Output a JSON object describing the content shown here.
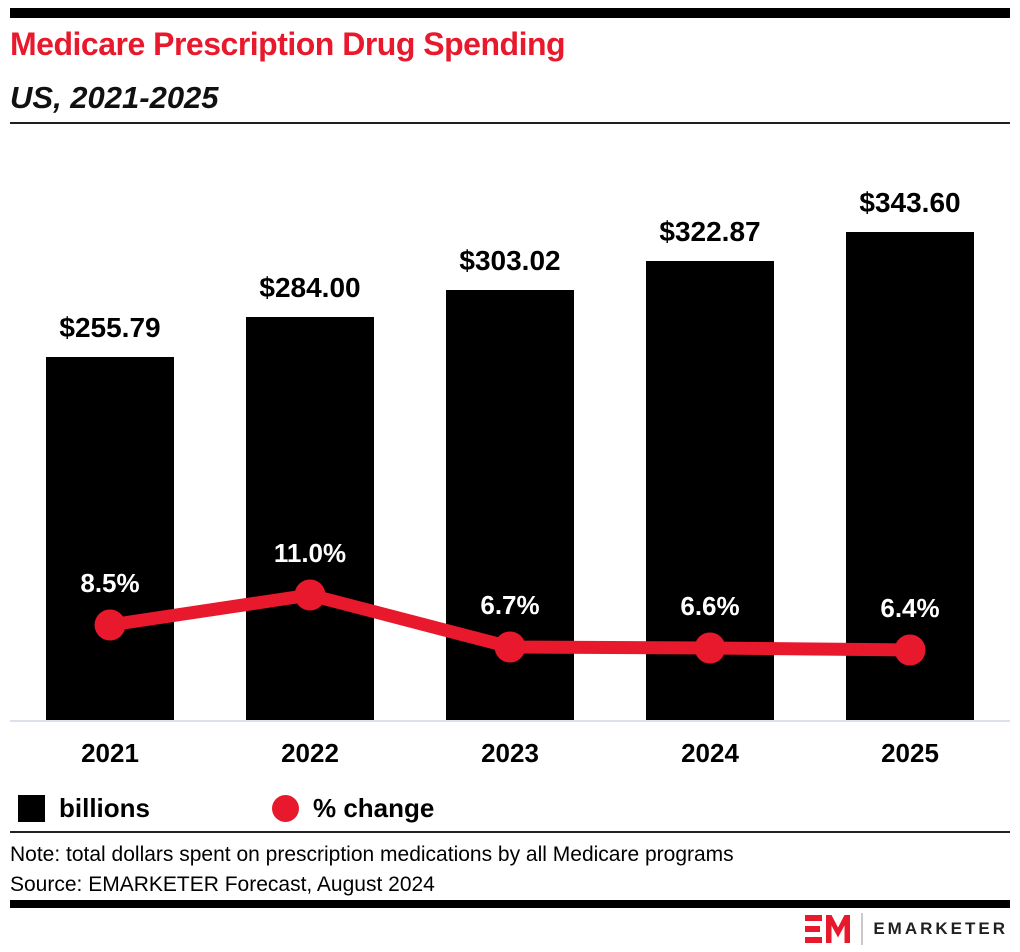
{
  "header": {
    "title": "Medicare Prescription Drug Spending",
    "subtitle": "US, 2021-2025"
  },
  "chart_data": {
    "type": "bar",
    "categories": [
      "2021",
      "2022",
      "2023",
      "2024",
      "2025"
    ],
    "series": [
      {
        "name": "billions",
        "type": "bar",
        "values": [
          255.79,
          284.0,
          303.02,
          322.87,
          343.6
        ],
        "labels": [
          "$255.79",
          "$284.00",
          "$303.02",
          "$322.87",
          "$343.60"
        ],
        "color": "#000000"
      },
      {
        "name": "% change",
        "type": "line",
        "values": [
          8.5,
          11.0,
          6.7,
          6.6,
          6.4
        ],
        "labels": [
          "8.5%",
          "11.0%",
          "6.7%",
          "6.6%",
          "6.4%"
        ],
        "color": "#e8192c"
      }
    ],
    "legend": [
      {
        "label": "billions",
        "swatch": "square",
        "color": "#000000"
      },
      {
        "label": "% change",
        "swatch": "circle",
        "color": "#e8192c"
      }
    ],
    "legend_position": "bottom-left",
    "grid": false,
    "y_axis_visible": false,
    "bar_value_axis_unit": "US$ billions",
    "ylim_bars": [
      0,
      506
    ],
    "ylim_line_pct": [
      0,
      20
    ]
  },
  "footer": {
    "note": "Note: total dollars spent on prescription medications by all Medicare programs",
    "source": "Source: EMARKETER Forecast, August 2024"
  },
  "branding": {
    "logo_monogram": "EM",
    "logo_text": "EMARKETER"
  },
  "colors": {
    "accent_red": "#e8192c",
    "bar_black": "#000000",
    "baseline_gray": "#dde1ee",
    "logo_text_color": "#231f20"
  }
}
